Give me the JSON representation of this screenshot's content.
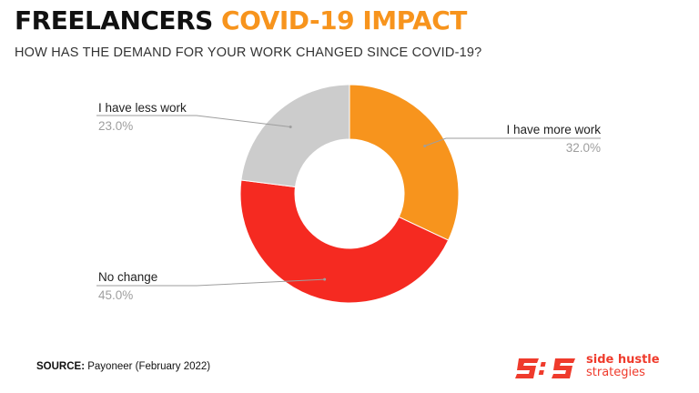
{
  "header": {
    "title_part1": "FREELANCERS",
    "title_part2": "COVID-19 IMPACT",
    "subtitle": "HOW HAS THE DEMAND FOR YOUR WORK CHANGED SINCE COVID-19?"
  },
  "chart_data": {
    "type": "pie",
    "donut": true,
    "slices": [
      {
        "label": "I have more work",
        "value": 32.0,
        "display": "32.0%",
        "color": "#f7941d"
      },
      {
        "label": "No change",
        "value": 45.0,
        "display": "45.0%",
        "color": "#f52a21"
      },
      {
        "label": "I have less work",
        "value": 23.0,
        "display": "23.0%",
        "color": "#cccccc"
      }
    ]
  },
  "footer": {
    "source_label": "SOURCE:",
    "source_text": " Payoneer (February 2022)"
  },
  "logo": {
    "mark": "S:S",
    "line1": "side hustle",
    "line2": "strategies",
    "color": "#ef3b2c"
  }
}
